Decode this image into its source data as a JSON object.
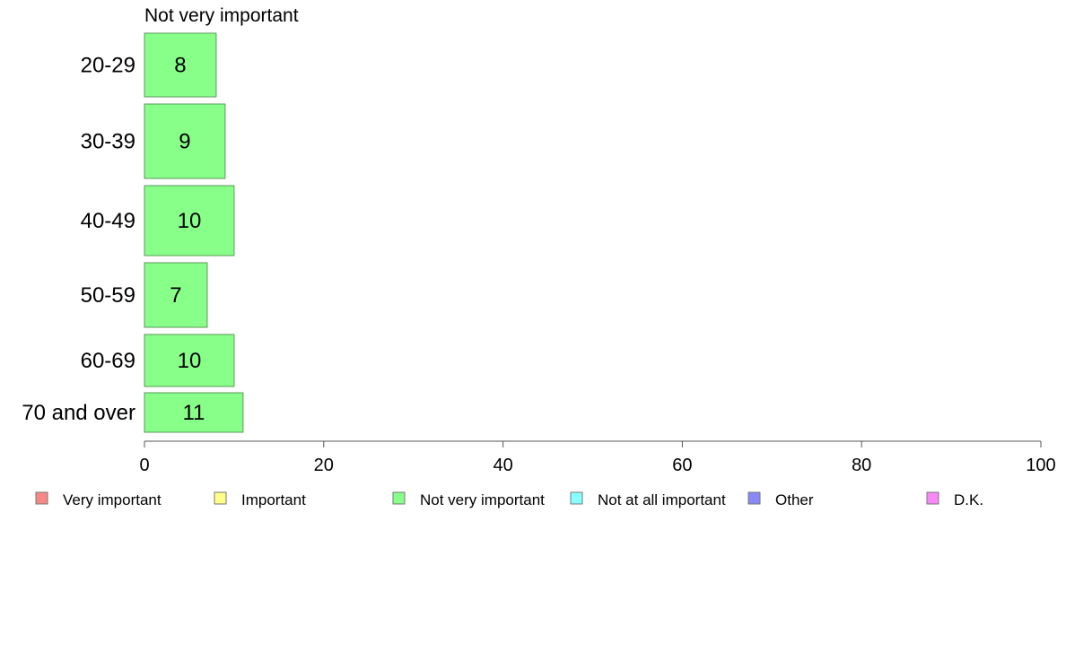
{
  "chart_data": {
    "type": "bar",
    "orientation": "horizontal",
    "title": "Not very important",
    "categories": [
      "20-29",
      "30-39",
      "40-49",
      "50-59",
      "60-69",
      "70 and over"
    ],
    "series": [
      {
        "name": "Not very important",
        "values": [
          8,
          9,
          10,
          7,
          10,
          11
        ],
        "color": "#88ff88"
      }
    ],
    "data_labels": [
      "8",
      "9",
      "10",
      "7",
      "10",
      "11"
    ],
    "xlim": [
      0,
      100
    ],
    "xticks": [
      "0",
      "20",
      "40",
      "60",
      "80",
      "100"
    ],
    "xlabel": "",
    "ylabel": "",
    "grid": false,
    "legend_position": "bottom",
    "legend": [
      {
        "label": "Very important",
        "color": "#f88888"
      },
      {
        "label": "Important",
        "color": "#ffff88"
      },
      {
        "label": "Not very important",
        "color": "#88ff88"
      },
      {
        "label": "Not at all important",
        "color": "#88ffff"
      },
      {
        "label": "Other",
        "color": "#8888f8"
      },
      {
        "label": "D.K.",
        "color": "#f888f8"
      }
    ]
  }
}
